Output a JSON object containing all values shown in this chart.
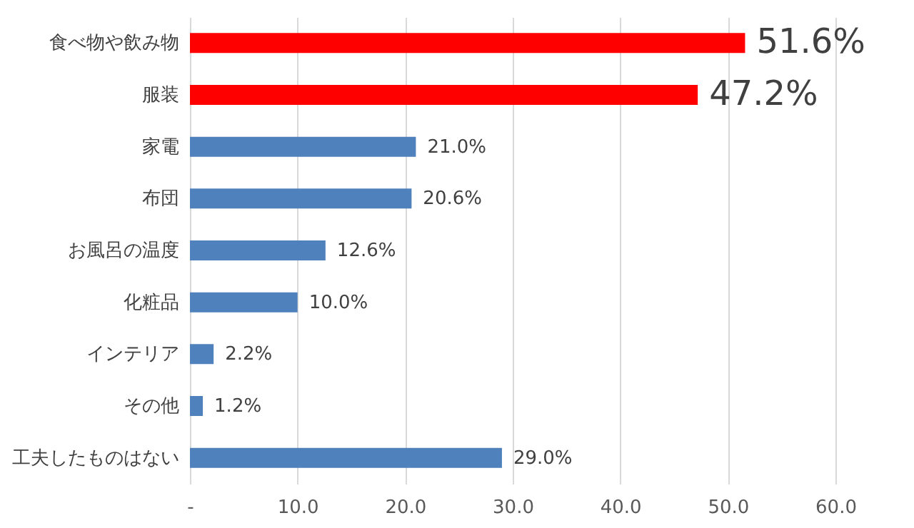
{
  "chart_data": {
    "type": "bar",
    "orientation": "horizontal",
    "categories": [
      "食べ物や飲み物",
      "服装",
      "家電",
      "布団",
      "お風呂の温度",
      "化粧品",
      "インテリア",
      "その他",
      "工夫したものはない"
    ],
    "values": [
      51.6,
      47.2,
      21.0,
      20.6,
      12.6,
      10.0,
      2.2,
      1.2,
      29.0
    ],
    "colors": [
      "#ff0000",
      "#ff0000",
      "#4f81bd",
      "#4f81bd",
      "#4f81bd",
      "#4f81bd",
      "#4f81bd",
      "#4f81bd",
      "#4f81bd"
    ],
    "value_labels": [
      "51.6%",
      "47.2%",
      "21.0%",
      "20.6%",
      "12.6%",
      "10.0%",
      "2.2%",
      "1.2%",
      "29.0%"
    ],
    "xlim": [
      0,
      60
    ],
    "xticks": [
      {
        "value": 0,
        "label": "-"
      },
      {
        "value": 10,
        "label": "10.0"
      },
      {
        "value": 20,
        "label": "20.0"
      },
      {
        "value": 30,
        "label": "30.0"
      },
      {
        "value": 40,
        "label": "40.0"
      },
      {
        "value": 50,
        "label": "50.0"
      },
      {
        "value": 60,
        "label": "60.0"
      }
    ],
    "grid": "x"
  }
}
